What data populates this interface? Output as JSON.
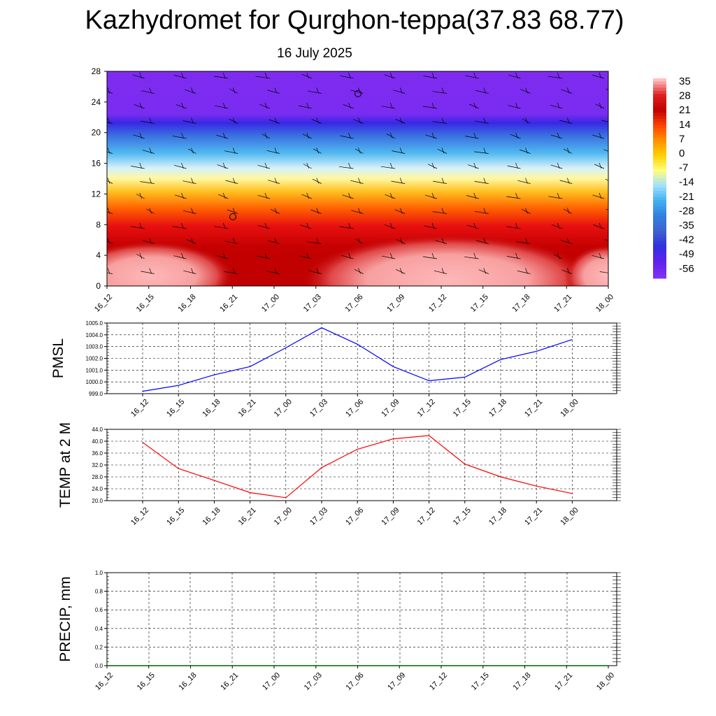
{
  "title": "Kazhydromet for Qurghon-teppa(37.83 68.77)",
  "subtitle": "16 July 2025",
  "colors": {
    "pmsl_line": "#0000ff",
    "temp_line": "#ff0000",
    "precip_line": "#006400",
    "grid": "#000000"
  },
  "colorbar": {
    "labels": [
      "35",
      "28",
      "21",
      "14",
      "7",
      "0",
      "-7",
      "-14",
      "-21",
      "-28",
      "-35",
      "-42",
      "-49",
      "-56"
    ],
    "stops": [
      "#ffc0c0",
      "#e02020",
      "#c00000",
      "#ff4000",
      "#ff9000",
      "#ffd000",
      "#ffff80",
      "#a0e0ff",
      "#40b0f0",
      "#3080e0",
      "#4060d0",
      "#3030e0",
      "#6020f0",
      "#8030f0"
    ]
  },
  "chart_data": [
    {
      "type": "heatmap",
      "name": "",
      "x_categories": [
        "16_12",
        "16_15",
        "16_18",
        "16_21",
        "17_00",
        "17_03",
        "17_06",
        "17_09",
        "17_12",
        "17_15",
        "17_18",
        "17_21",
        "18_00"
      ],
      "y_ticks": [
        "0",
        "4",
        "8",
        "12",
        "16",
        "20",
        "24",
        "28"
      ],
      "ylim": [
        0,
        28
      ],
      "colorbar_range": [
        -56,
        35
      ],
      "overlay": "wind barbs"
    },
    {
      "type": "line",
      "ylabel": "PMSL",
      "x": [
        "16_12",
        "16_15",
        "16_18",
        "16_21",
        "17_00",
        "17_03",
        "17_06",
        "17_09",
        "17_12",
        "17_15",
        "17_18",
        "17_21",
        "18_00"
      ],
      "y_ticks": [
        "1005.0",
        "1004.0",
        "1003.0",
        "1002.0",
        "1001.0",
        "1000.0",
        "999.0"
      ],
      "ylim": [
        999.0,
        1005.0
      ],
      "values": [
        999.2,
        999.7,
        1000.6,
        1001.3,
        1002.9,
        1004.6,
        1003.2,
        1001.3,
        1000.1,
        1000.4,
        1001.9,
        1002.6,
        1003.6
      ],
      "grid": true
    },
    {
      "type": "line",
      "ylabel": "TEMP at 2 M",
      "x": [
        "16_12",
        "16_15",
        "16_18",
        "16_21",
        "17_00",
        "17_03",
        "17_06",
        "17_09",
        "17_12",
        "17_15",
        "17_18",
        "17_21",
        "18_00"
      ],
      "y_ticks": [
        "44.0",
        "40.0",
        "36.0",
        "32.0",
        "28.0",
        "24.0",
        "20.0"
      ],
      "ylim": [
        20.0,
        44.0
      ],
      "values": [
        39.6,
        30.8,
        26.8,
        22.7,
        21.0,
        31.1,
        37.3,
        40.8,
        41.9,
        32.3,
        28.0,
        24.9,
        22.4
      ],
      "grid": true
    },
    {
      "type": "line",
      "ylabel": "PRECIP, mm",
      "x": [
        "16_12",
        "16_15",
        "16_18",
        "16_21",
        "17_00",
        "17_03",
        "17_06",
        "17_09",
        "17_12",
        "17_15",
        "17_18",
        "17_21",
        "18_00"
      ],
      "y_ticks": [
        "1.0",
        "0.8",
        "0.6",
        "0.4",
        "0.2",
        "0.0"
      ],
      "ylim": [
        0.0,
        1.0
      ],
      "values": [
        0,
        0,
        0,
        0,
        0,
        0,
        0,
        0,
        0,
        0,
        0,
        0,
        0
      ],
      "grid": true
    }
  ]
}
